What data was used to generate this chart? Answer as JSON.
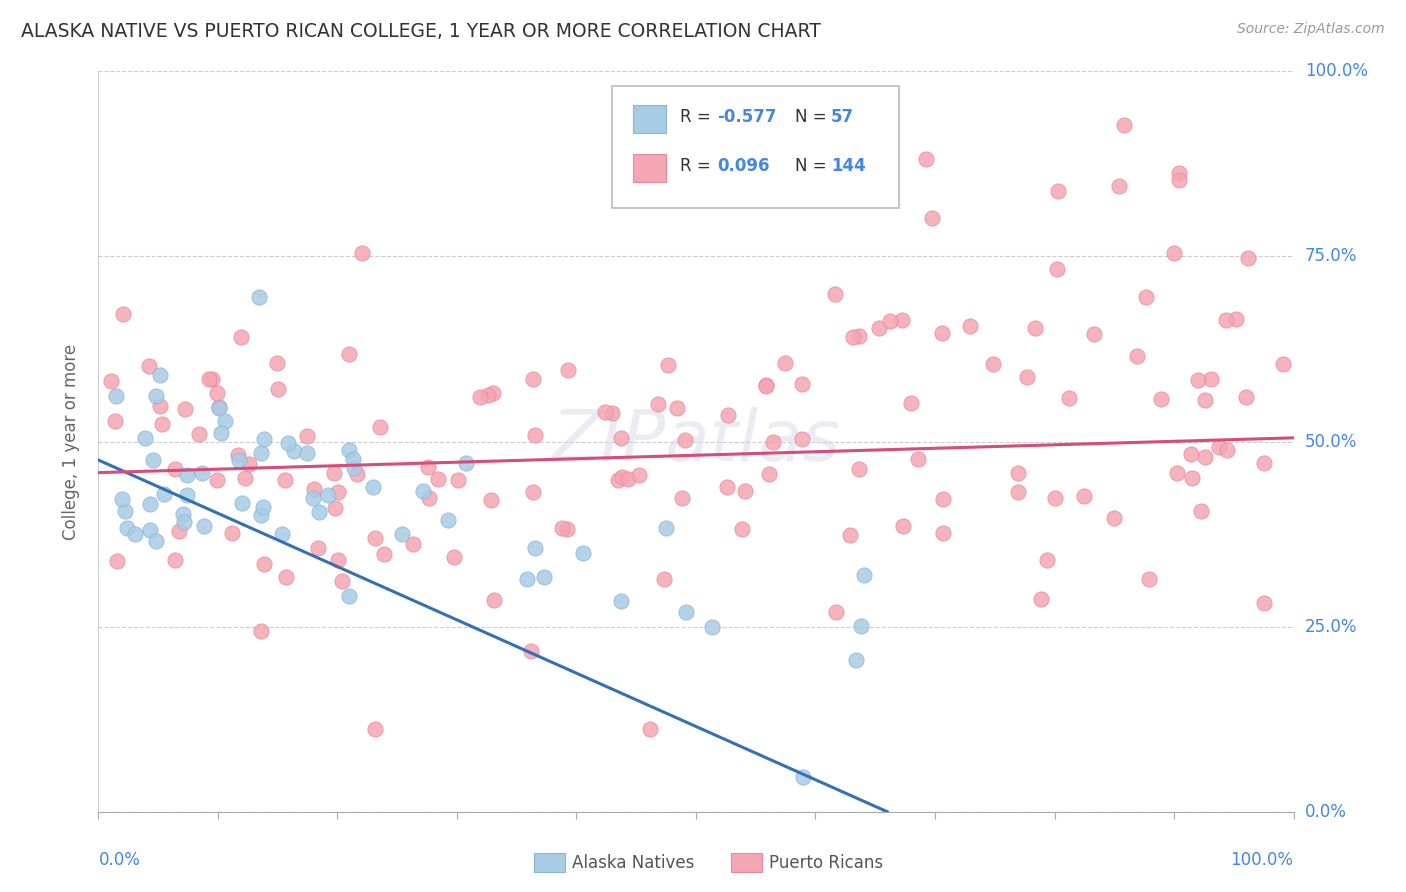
{
  "title": "ALASKA NATIVE VS PUERTO RICAN COLLEGE, 1 YEAR OR MORE CORRELATION CHART",
  "source": "Source: ZipAtlas.com",
  "ylabel": "College, 1 year or more",
  "ytick_labels": [
    "0.0%",
    "25.0%",
    "50.0%",
    "75.0%",
    "100.0%"
  ],
  "ytick_values": [
    0.0,
    0.25,
    0.5,
    0.75,
    1.0
  ],
  "xlim": [
    0.0,
    1.0
  ],
  "ylim": [
    0.0,
    1.0
  ],
  "watermark": "ZIPatlas",
  "color_alaska": "#a8cce4",
  "color_alaska_edge": "#8ab4d4",
  "color_pr": "#f4a6b2",
  "color_pr_edge": "#e888a0",
  "color_alaska_line": "#3570b2",
  "color_pr_line": "#d64c7a",
  "color_title": "#333333",
  "color_source": "#888888",
  "color_axis_labels": "#4488dd",
  "color_grid": "#cccccc",
  "alaska_line_y_start": 0.475,
  "alaska_line_y_end": 0.0,
  "alaska_line_x_end": 0.66,
  "pr_line_y_start": 0.458,
  "pr_line_y_end": 0.505,
  "legend_r1_text": "R = -0.577",
  "legend_n1_text": "N =  57",
  "legend_r2_text": "R =  0.096",
  "legend_n2_text": "N = 144",
  "alaska_seed": 42,
  "pr_seed": 99
}
